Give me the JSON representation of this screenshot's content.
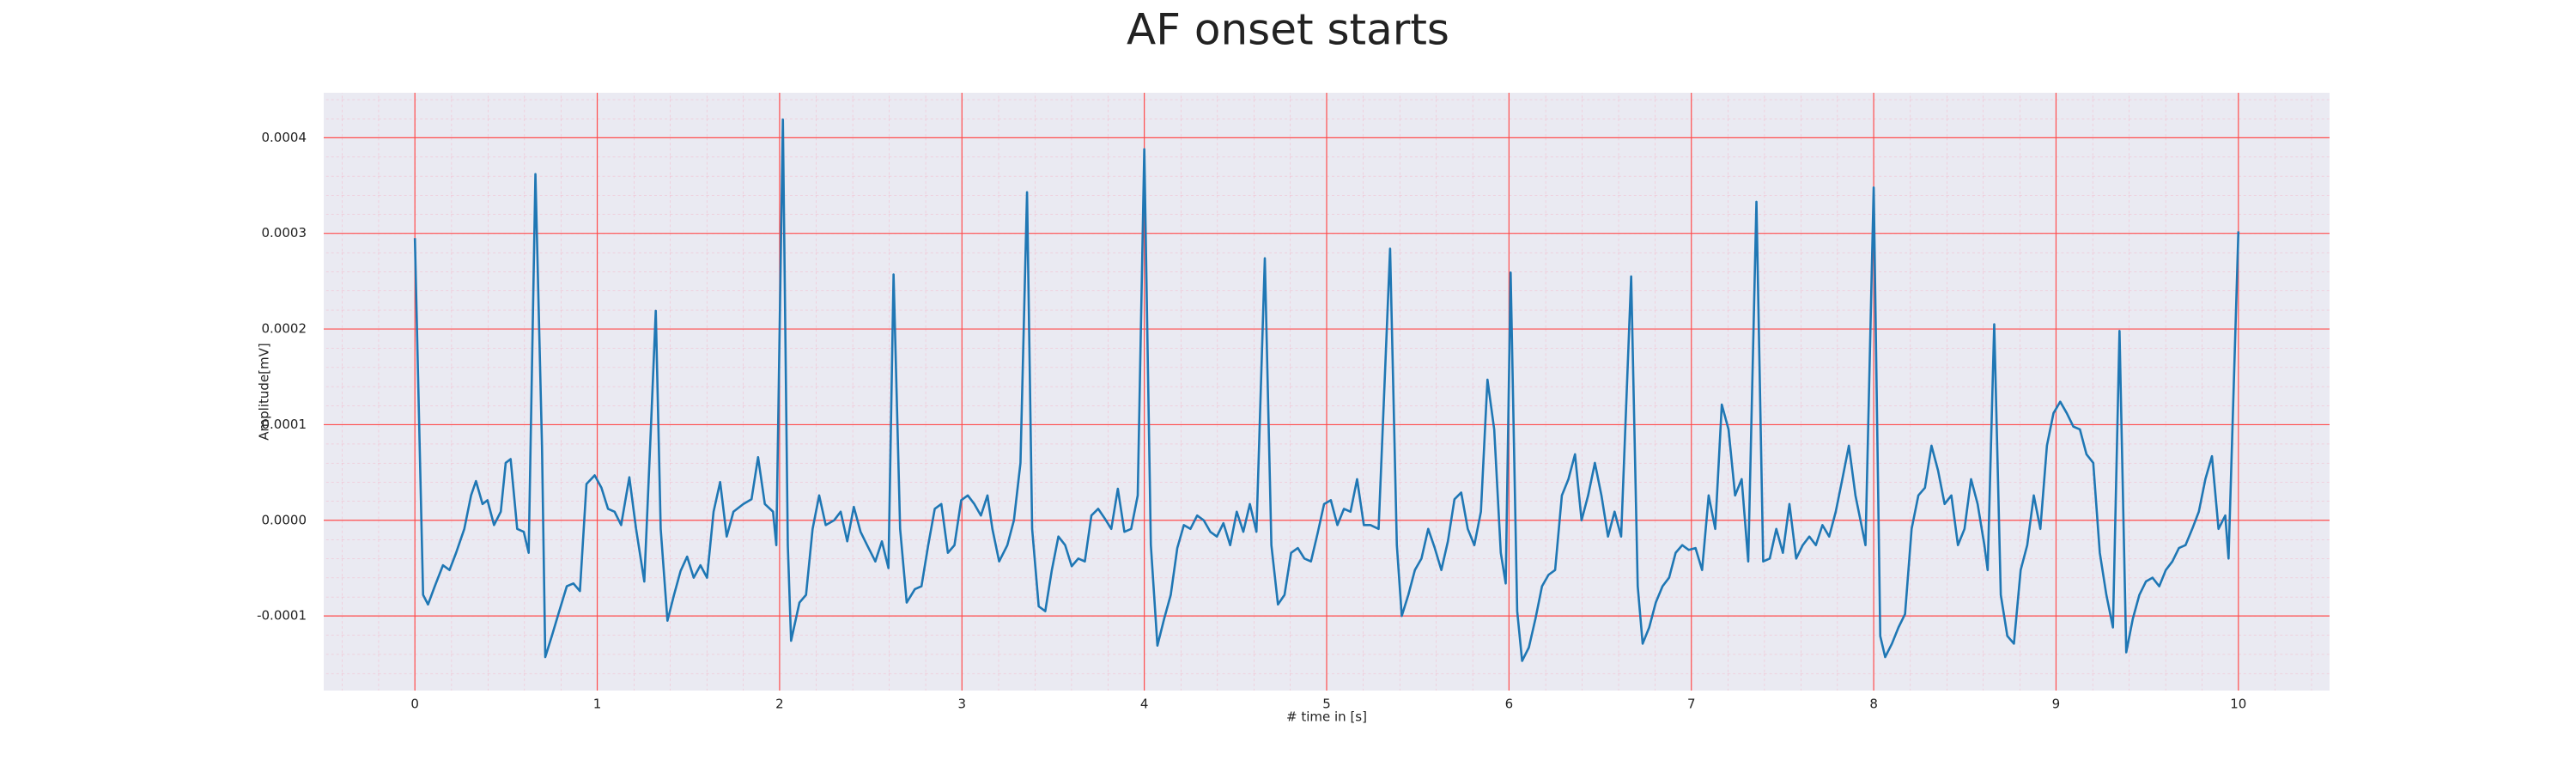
{
  "chart_data": {
    "type": "line",
    "title": "AF onset starts",
    "xlabel": "# time in [s]",
    "ylabel": "Amplitude[mV]",
    "color": "#1f77b4",
    "grid": true,
    "minor_grid": true,
    "xlim": [
      -0.5,
      10.5
    ],
    "ylim": [
      -0.000178,
      0.000447
    ],
    "xticks": [
      0,
      1,
      2,
      3,
      4,
      5,
      6,
      7,
      8,
      9,
      10
    ],
    "yticks": [
      -0.0001,
      {
        "value": 0,
        "label": "0.0000"
      },
      0.0001,
      0.0002,
      0.0003,
      0.0004
    ],
    "x": [
      0,
      0.045,
      0.072,
      0.109,
      0.154,
      0.19,
      0.226,
      0.271,
      0.308,
      0.335,
      0.371,
      0.398,
      0.434,
      0.471,
      0.498,
      0.525,
      0.561,
      0.597,
      0.624,
      0.661,
      0.697,
      0.715,
      0.751,
      0.787,
      0.833,
      0.869,
      0.905,
      0.941,
      0.986,
      1.023,
      1.059,
      1.095,
      1.131,
      1.176,
      1.213,
      1.258,
      1.294,
      1.321,
      1.348,
      1.385,
      1.421,
      1.457,
      1.493,
      1.529,
      1.566,
      1.602,
      1.638,
      1.674,
      1.71,
      1.747,
      1.801,
      1.846,
      1.882,
      1.919,
      1.964,
      1.982,
      2.018,
      2.045,
      2.063,
      2.109,
      2.145,
      2.181,
      2.217,
      2.253,
      2.299,
      2.335,
      2.371,
      2.407,
      2.444,
      2.48,
      2.525,
      2.561,
      2.597,
      2.625,
      2.661,
      2.697,
      2.742,
      2.778,
      2.815,
      2.851,
      2.887,
      2.923,
      2.959,
      2.996,
      3.032,
      3.068,
      3.104,
      3.14,
      3.167,
      3.204,
      3.249,
      3.285,
      3.321,
      3.357,
      3.385,
      3.421,
      3.457,
      3.493,
      3.529,
      3.566,
      3.602,
      3.638,
      3.674,
      3.71,
      3.747,
      3.783,
      3.819,
      3.855,
      3.891,
      3.928,
      3.964,
      4.0,
      4.036,
      4.072,
      4.109,
      4.145,
      4.181,
      4.217,
      4.253,
      4.29,
      4.326,
      4.362,
      4.398,
      4.434,
      4.471,
      4.507,
      4.543,
      4.579,
      4.615,
      4.661,
      4.697,
      4.733,
      4.769,
      4.805,
      4.842,
      4.878,
      4.914,
      4.95,
      4.986,
      5.023,
      5.059,
      5.095,
      5.131,
      5.167,
      5.204,
      5.24,
      5.285,
      5.348,
      5.385,
      5.412,
      5.448,
      5.484,
      5.52,
      5.557,
      5.593,
      5.629,
      5.665,
      5.701,
      5.738,
      5.774,
      5.81,
      5.846,
      5.882,
      5.919,
      5.955,
      5.982,
      6.009,
      6.045,
      6.072,
      6.109,
      6.145,
      6.181,
      6.217,
      6.253,
      6.29,
      6.326,
      6.362,
      6.398,
      6.434,
      6.471,
      6.507,
      6.543,
      6.579,
      6.615,
      6.67,
      6.706,
      6.733,
      6.769,
      6.805,
      6.842,
      6.878,
      6.914,
      6.95,
      6.986,
      7.023,
      7.059,
      7.095,
      7.131,
      7.167,
      7.204,
      7.24,
      7.276,
      7.312,
      7.357,
      7.394,
      7.43,
      7.466,
      7.502,
      7.538,
      7.575,
      7.611,
      7.647,
      7.683,
      7.719,
      7.756,
      7.792,
      7.828,
      7.864,
      7.9,
      7.955,
      8.0,
      8.036,
      8.063,
      8.1,
      8.136,
      8.172,
      8.208,
      8.245,
      8.281,
      8.317,
      8.353,
      8.389,
      8.426,
      8.462,
      8.498,
      8.534,
      8.57,
      8.607,
      8.625,
      8.661,
      8.697,
      8.733,
      8.769,
      8.806,
      8.842,
      8.878,
      8.914,
      8.95,
      8.986,
      9.023,
      9.059,
      9.095,
      9.131,
      9.167,
      9.204,
      9.24,
      9.276,
      9.312,
      9.348,
      9.385,
      9.421,
      9.457,
      9.493,
      9.529,
      9.566,
      9.602,
      9.638,
      9.674,
      9.71,
      9.747,
      9.783,
      9.819,
      9.855,
      9.891,
      9.928,
      9.946,
      10.0
    ],
    "values": [
      0.000295,
      -7.8e-05,
      -8.8e-05,
      -6.9e-05,
      -4.7e-05,
      -5.2e-05,
      -3.4e-05,
      -9e-06,
      2.6e-05,
      4.1e-05,
      1.7e-05,
      2.1e-05,
      -5e-06,
      9e-06,
      6e-05,
      6.4e-05,
      -9e-06,
      -1.2e-05,
      -3.4e-05,
      0.000362,
      7.8e-05,
      -0.000143,
      -0.000121,
      -9.8e-05,
      -6.9e-05,
      -6.6e-05,
      -7.4e-05,
      3.8e-05,
      4.7e-05,
      3.4e-05,
      1.2e-05,
      9e-06,
      -5e-06,
      4.5e-05,
      -9e-06,
      -6.4e-05,
      9.5e-05,
      0.000219,
      -9e-06,
      -0.000105,
      -7.8e-05,
      -5.3e-05,
      -3.8e-05,
      -6e-05,
      -4.7e-05,
      -6e-05,
      9e-06,
      4e-05,
      -1.7e-05,
      9e-06,
      1.7e-05,
      2.2e-05,
      6.6e-05,
      1.7e-05,
      9e-06,
      -2.6e-05,
      0.000419,
      -2.6e-05,
      -0.000126,
      -8.6e-05,
      -7.8e-05,
      -9e-06,
      2.6e-05,
      -5e-06,
      0,
      9e-06,
      -2.2e-05,
      1.4e-05,
      -1.2e-05,
      -2.6e-05,
      -4.3e-05,
      -2.2e-05,
      -5e-05,
      0.000257,
      -9e-06,
      -8.6e-05,
      -7.2e-05,
      -6.9e-05,
      -2.6e-05,
      1.2e-05,
      1.7e-05,
      -3.4e-05,
      -2.6e-05,
      2.1e-05,
      2.6e-05,
      1.7e-05,
      5e-06,
      2.6e-05,
      -9e-06,
      -4.3e-05,
      -2.6e-05,
      0,
      6e-05,
      0.000343,
      -9e-06,
      -9e-05,
      -9.5e-05,
      -5.2e-05,
      -1.7e-05,
      -2.6e-05,
      -4.8e-05,
      -4e-05,
      -4.3e-05,
      5e-06,
      1.2e-05,
      2e-06,
      -9e-06,
      3.3e-05,
      -1.2e-05,
      -9e-06,
      2.6e-05,
      0.000388,
      -2.6e-05,
      -0.000131,
      -0.000103,
      -7.8e-05,
      -2.9e-05,
      -5e-06,
      -9e-06,
      5e-06,
      0,
      -1.2e-05,
      -1.7e-05,
      -3e-06,
      -2.6e-05,
      9e-06,
      -1.2e-05,
      1.7e-05,
      -1.2e-05,
      0.000274,
      -2.6e-05,
      -8.8e-05,
      -7.8e-05,
      -3.4e-05,
      -2.9e-05,
      -4e-05,
      -4.3e-05,
      -1.4e-05,
      1.7e-05,
      2.1e-05,
      -5e-06,
      1.2e-05,
      9e-06,
      4.3e-05,
      -5e-06,
      -5e-06,
      -9e-06,
      0.000284,
      -2.6e-05,
      -0.0001,
      -7.8e-05,
      -5.2e-05,
      -4e-05,
      -9e-06,
      -2.9e-05,
      -5.2e-05,
      -2.2e-05,
      2.2e-05,
      2.9e-05,
      -9e-06,
      -2.6e-05,
      9e-06,
      0.000147,
      9.5e-05,
      -3.4e-05,
      -6.6e-05,
      0.000259,
      -9.5e-05,
      -0.000147,
      -0.000133,
      -0.000103,
      -6.9e-05,
      -5.7e-05,
      -5.2e-05,
      2.6e-05,
      4.3e-05,
      6.9e-05,
      0,
      2.6e-05,
      6e-05,
      2.6e-05,
      -1.7e-05,
      9e-06,
      -1.7e-05,
      0.000255,
      -6.9e-05,
      -0.000129,
      -0.000112,
      -8.6e-05,
      -6.9e-05,
      -6e-05,
      -3.4e-05,
      -2.6e-05,
      -3.1e-05,
      -2.9e-05,
      -5.2e-05,
      2.6e-05,
      -9e-06,
      0.000121,
      9.5e-05,
      2.6e-05,
      4.3e-05,
      -4.3e-05,
      0.000333,
      -4.3e-05,
      -4e-05,
      -9e-06,
      -3.4e-05,
      1.7e-05,
      -4e-05,
      -2.6e-05,
      -1.7e-05,
      -2.6e-05,
      -5e-06,
      -1.7e-05,
      9e-06,
      4.3e-05,
      7.8e-05,
      2.6e-05,
      -2.6e-05,
      0.000348,
      -0.000121,
      -0.000143,
      -0.000129,
      -0.000112,
      -9.8e-05,
      -9e-06,
      2.6e-05,
      3.4e-05,
      7.8e-05,
      5.2e-05,
      1.7e-05,
      2.6e-05,
      -2.6e-05,
      -9e-06,
      4.3e-05,
      1.7e-05,
      -2.6e-05,
      -5.2e-05,
      0.000205,
      -7.8e-05,
      -0.000121,
      -0.000129,
      -5.2e-05,
      -2.6e-05,
      2.6e-05,
      -9e-06,
      7.8e-05,
      0.000112,
      0.000124,
      0.000112,
      9.8e-05,
      9.5e-05,
      6.9e-05,
      6e-05,
      -3.4e-05,
      -7.8e-05,
      -0.000112,
      0.000198,
      -0.000138,
      -0.000103,
      -7.8e-05,
      -6.4e-05,
      -6e-05,
      -6.9e-05,
      -5.2e-05,
      -4.3e-05,
      -2.9e-05,
      -2.6e-05,
      -9e-06,
      9e-06,
      4.3e-05,
      6.7e-05,
      -9e-06,
      5e-06,
      -4e-05,
      0.000302
    ]
  }
}
